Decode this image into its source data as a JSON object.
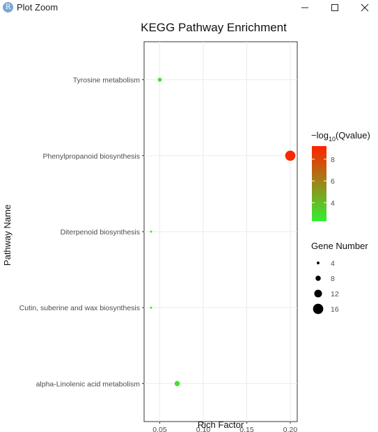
{
  "window": {
    "title": "Plot Zoom",
    "app_icon": "R",
    "controls": [
      "minimize-icon",
      "maximize-icon",
      "close-icon"
    ]
  },
  "chart_data": {
    "type": "scatter",
    "title": "KEGG Pathway Enrichment",
    "xlabel": "Rich Factor",
    "ylabel": "Pathway Name",
    "xlim": [
      0.032,
      0.208
    ],
    "xticks": [
      0.05,
      0.1,
      0.15,
      0.2
    ],
    "xtick_labels": [
      "0.05",
      "0.10",
      "0.15",
      "0.20"
    ],
    "categories": [
      "alpha-Linolenic acid metabolism",
      "Cutin, suberine and wax biosynthesis",
      "Diterpenoid biosynthesis",
      "Phenylpropanoid biosynthesis",
      "Tyrosine metabolism"
    ],
    "points": [
      {
        "pathway": "Tyrosine metabolism",
        "rich_factor": 0.05,
        "gene_number": 6,
        "neg_log10_q": 2.6
      },
      {
        "pathway": "Phenylpropanoid biosynthesis",
        "rich_factor": 0.2,
        "gene_number": 16,
        "neg_log10_q": 9.0
      },
      {
        "pathway": "Diterpenoid biosynthesis",
        "rich_factor": 0.04,
        "gene_number": 3,
        "neg_log10_q": 2.4
      },
      {
        "pathway": "Cutin, suberine and wax biosynthesis",
        "rich_factor": 0.04,
        "gene_number": 3,
        "neg_log10_q": 2.4
      },
      {
        "pathway": "alpha-Linolenic acid metabolism",
        "rich_factor": 0.07,
        "gene_number": 8,
        "neg_log10_q": 2.6
      }
    ],
    "color_legend": {
      "title_prefix": "−log",
      "title_sub": "10",
      "title_suffix": "(Qvalue)",
      "range": [
        2.3,
        9.2
      ],
      "ticks": [
        4,
        6,
        8
      ],
      "tick_labels": [
        "4",
        "6",
        "8"
      ],
      "low_color": "#33ee33",
      "high_color": "#ff2200"
    },
    "size_legend": {
      "title": "Gene Number",
      "values": [
        4,
        8,
        12,
        16
      ],
      "labels": [
        "4",
        "8",
        "12",
        "16"
      ]
    },
    "grid": true,
    "background": "#ffffff"
  }
}
